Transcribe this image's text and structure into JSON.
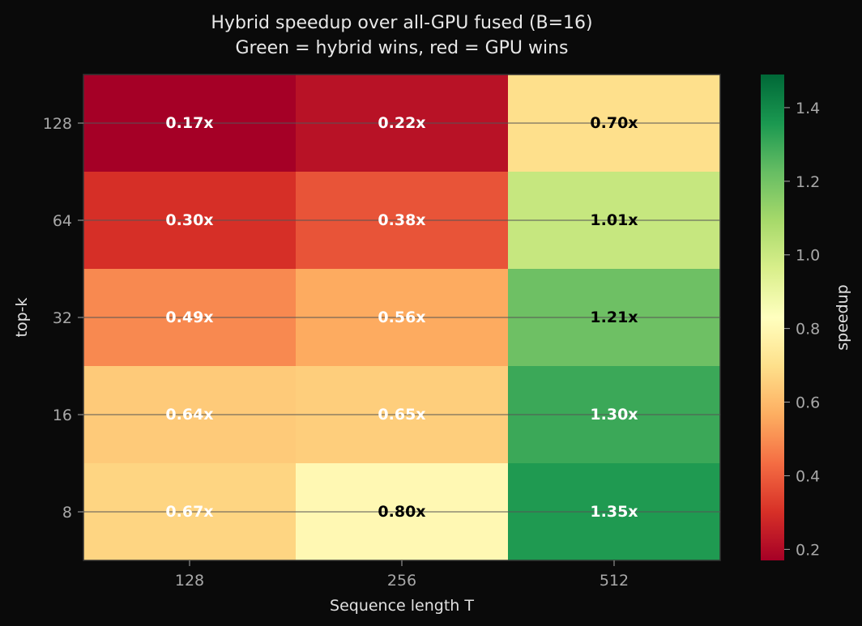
{
  "chart_data": {
    "type": "heatmap",
    "title": "Hybrid speedup over all-GPU fused (B=16)",
    "subtitle": "Green = hybrid wins, red = GPU wins",
    "xlabel": "Sequence length T",
    "ylabel": "top-k",
    "x_categories": [
      "128",
      "256",
      "512"
    ],
    "y_categories": [
      "128",
      "64",
      "32",
      "16",
      "8"
    ],
    "values": [
      [
        0.17,
        0.22,
        0.7
      ],
      [
        0.3,
        0.38,
        1.01
      ],
      [
        0.49,
        0.56,
        1.21
      ],
      [
        0.64,
        0.65,
        1.3
      ],
      [
        0.67,
        0.8,
        1.35
      ]
    ],
    "cell_labels": [
      [
        "0.17x",
        "0.22x",
        "0.70x"
      ],
      [
        "0.30x",
        "0.38x",
        "1.01x"
      ],
      [
        "0.49x",
        "0.56x",
        "1.21x"
      ],
      [
        "0.64x",
        "0.65x",
        "1.30x"
      ],
      [
        "0.67x",
        "0.80x",
        "1.35x"
      ]
    ],
    "colorbar": {
      "label": "speedup",
      "range": [
        0.17,
        1.49
      ],
      "ticks": [
        0.2,
        0.4,
        0.6,
        0.8,
        1.0,
        1.2,
        1.4
      ],
      "tick_labels": [
        "0.2",
        "0.4",
        "0.6",
        "0.8",
        "1.0",
        "1.2",
        "1.4"
      ],
      "colormap": "RdYlGn"
    },
    "grid": true,
    "colors": {
      "background": "#0a0a0a",
      "text_dark": "#000000",
      "text_light": "#ffffff",
      "grid": "#555555",
      "frame": "#333333"
    }
  }
}
